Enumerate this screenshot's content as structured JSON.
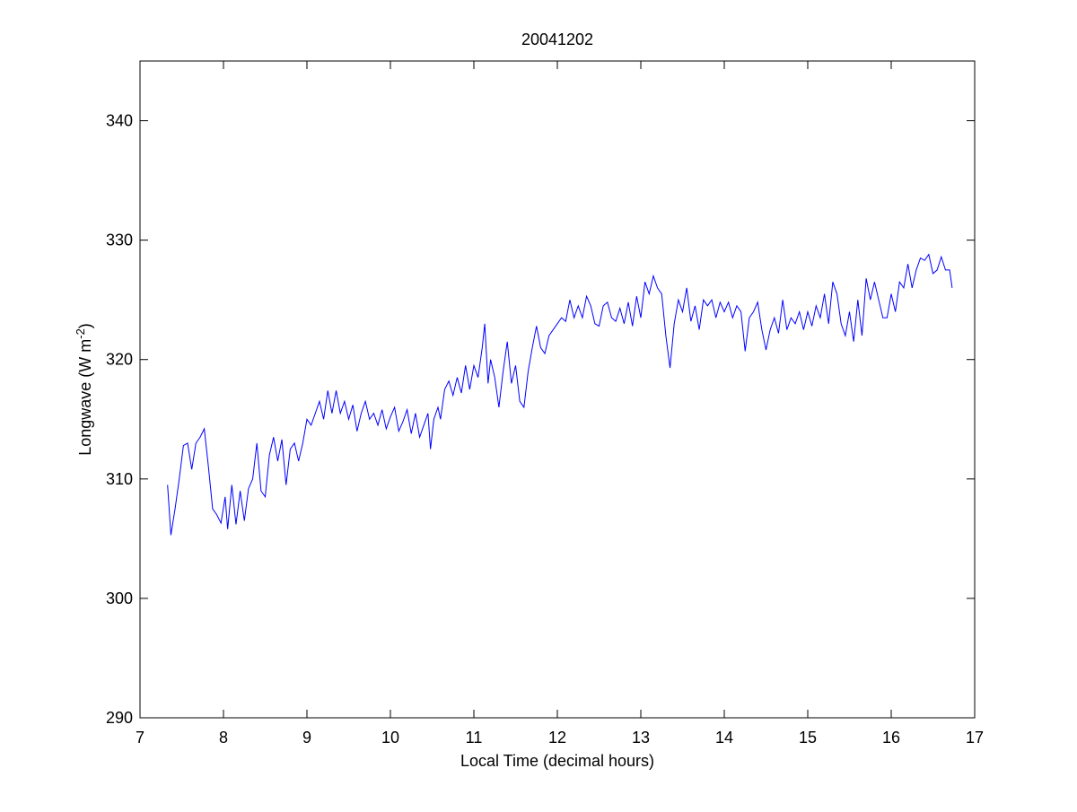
{
  "chart_data": {
    "type": "line",
    "title": "20041202",
    "xlabel": "Local Time (decimal hours)",
    "ylabel": [
      "Longwave (W m",
      "-2",
      ")"
    ],
    "xlim": [
      7,
      17
    ],
    "xticks": [
      7,
      8,
      9,
      10,
      11,
      12,
      13,
      14,
      15,
      16,
      17
    ],
    "ylim": [
      290,
      345
    ],
    "yticks": [
      290,
      300,
      310,
      320,
      330,
      340
    ],
    "grid": false,
    "x": [
      7.33,
      7.37,
      7.42,
      7.47,
      7.52,
      7.57,
      7.62,
      7.67,
      7.72,
      7.77,
      7.82,
      7.87,
      7.92,
      7.97,
      8.02,
      8.05,
      8.1,
      8.15,
      8.2,
      8.25,
      8.3,
      8.35,
      8.4,
      8.45,
      8.5,
      8.55,
      8.6,
      8.65,
      8.7,
      8.75,
      8.8,
      8.85,
      8.9,
      8.95,
      9.0,
      9.05,
      9.1,
      9.15,
      9.2,
      9.25,
      9.3,
      9.35,
      9.4,
      9.45,
      9.5,
      9.55,
      9.6,
      9.65,
      9.7,
      9.75,
      9.8,
      9.85,
      9.9,
      9.95,
      10.0,
      10.05,
      10.1,
      10.15,
      10.2,
      10.25,
      10.3,
      10.35,
      10.4,
      10.45,
      10.48,
      10.52,
      10.57,
      10.6,
      10.65,
      10.7,
      10.75,
      10.8,
      10.85,
      10.9,
      10.95,
      11.0,
      11.05,
      11.1,
      11.13,
      11.17,
      11.2,
      11.25,
      11.3,
      11.35,
      11.4,
      11.45,
      11.5,
      11.55,
      11.6,
      11.65,
      11.7,
      11.75,
      11.8,
      11.85,
      11.9,
      11.95,
      12.0,
      12.05,
      12.1,
      12.15,
      12.2,
      12.25,
      12.3,
      12.35,
      12.4,
      12.45,
      12.5,
      12.55,
      12.6,
      12.65,
      12.7,
      12.75,
      12.8,
      12.85,
      12.9,
      12.95,
      13.0,
      13.05,
      13.1,
      13.15,
      13.2,
      13.25,
      13.3,
      13.35,
      13.4,
      13.45,
      13.5,
      13.55,
      13.6,
      13.65,
      13.7,
      13.75,
      13.8,
      13.85,
      13.9,
      13.95,
      14.0,
      14.05,
      14.1,
      14.15,
      14.2,
      14.25,
      14.3,
      14.35,
      14.4,
      14.45,
      14.5,
      14.55,
      14.6,
      14.65,
      14.7,
      14.75,
      14.8,
      14.85,
      14.9,
      14.95,
      15.0,
      15.05,
      15.1,
      15.15,
      15.2,
      15.25,
      15.3,
      15.35,
      15.4,
      15.45,
      15.5,
      15.55,
      15.6,
      15.65,
      15.7,
      15.75,
      15.8,
      15.85,
      15.9,
      15.95,
      16.0,
      16.05,
      16.1,
      16.15,
      16.2,
      16.25,
      16.3,
      16.35,
      16.4,
      16.45,
      16.5,
      16.55,
      16.6,
      16.65,
      16.7,
      16.73
    ],
    "series": [
      {
        "color": "#0000ff",
        "values": [
          309.5,
          305.3,
          307.5,
          310,
          312.8,
          313,
          310.8,
          313,
          313.5,
          314.2,
          311,
          307.5,
          307,
          306.3,
          308.5,
          305.8,
          309.5,
          306.2,
          309,
          306.5,
          309.2,
          310,
          313,
          309,
          308.5,
          312,
          313.5,
          311.5,
          313.3,
          309.5,
          312.5,
          313,
          311.5,
          313,
          315,
          314.5,
          315.5,
          316.5,
          315,
          317.4,
          315.5,
          317.4,
          315.5,
          316.5,
          315,
          316.2,
          314,
          315.5,
          316.5,
          315,
          315.5,
          314.5,
          315.8,
          314.2,
          315.2,
          316,
          314,
          314.8,
          315.8,
          313.8,
          315.5,
          313.5,
          314.5,
          315.5,
          312.5,
          315,
          316,
          315,
          317.5,
          318.2,
          317,
          318.5,
          317.2,
          319.5,
          317.5,
          319.5,
          318.5,
          321,
          323,
          318,
          320,
          318.5,
          316,
          319,
          321.5,
          318,
          319.5,
          316.5,
          316,
          319,
          321,
          322.8,
          321,
          320.5,
          322,
          322.5,
          323,
          323.5,
          323.2,
          325,
          323.5,
          324.5,
          323.5,
          325.3,
          324.5,
          323,
          322.8,
          324.5,
          324.8,
          323.5,
          323.2,
          324.3,
          323,
          324.8,
          322.8,
          325.3,
          323.5,
          326.5,
          325.5,
          327,
          326,
          325.5,
          322,
          319.3,
          323,
          325,
          324,
          326,
          323.2,
          324.5,
          322.5,
          325,
          324.5,
          325,
          323.5,
          324.8,
          324,
          324.8,
          323.5,
          324.5,
          324,
          320.7,
          323.5,
          324,
          324.8,
          322.5,
          320.8,
          322.5,
          323.5,
          322.2,
          325,
          322.5,
          323.5,
          323,
          324,
          322.5,
          324,
          322.8,
          324.5,
          323.5,
          325.5,
          323,
          326.5,
          325.5,
          323,
          322,
          324,
          321.5,
          325,
          322,
          326.8,
          325,
          326.5,
          325,
          323.5,
          323.5,
          325.5,
          324,
          326.5,
          326,
          328,
          326,
          327.5,
          328.5,
          328.3,
          328.8,
          327.2,
          327.5,
          328.6,
          327.5,
          327.5,
          326
        ]
      }
    ]
  }
}
